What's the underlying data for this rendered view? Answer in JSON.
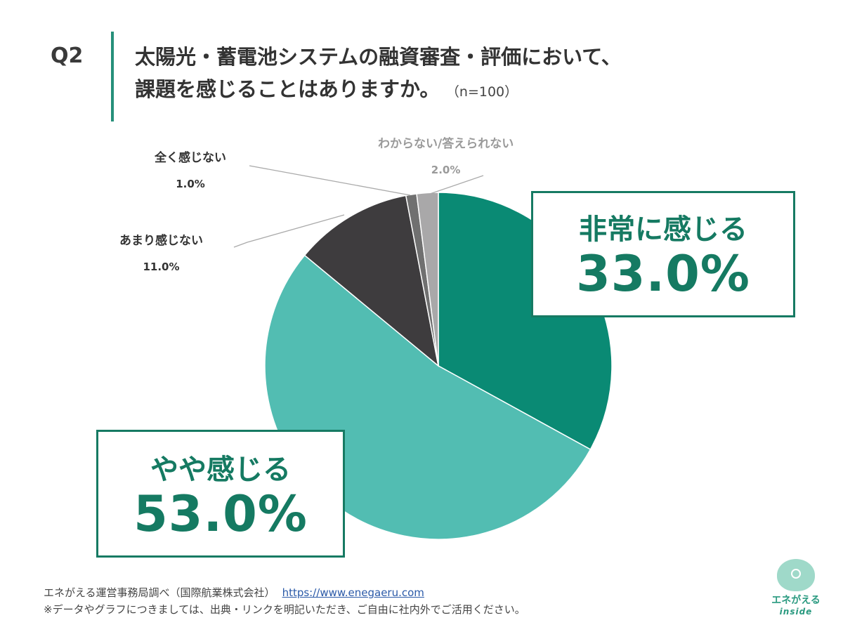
{
  "question": {
    "number": "Q2",
    "line1": "太陽光・蓄電池システムの融資審査・評価において、",
    "line2": "課題を感じることはありますか。",
    "sample": "（n=100）"
  },
  "chart_data": {
    "type": "pie",
    "title": "太陽光・蓄電池システムの融資審査・評価において、課題を感じることはありますか。",
    "unit": "%",
    "slices": [
      {
        "label": "非常に感じる",
        "value": 33.0,
        "display": "33.0%",
        "color": "#0a8a74"
      },
      {
        "label": "やや感じる",
        "value": 53.0,
        "display": "53.0%",
        "color": "#52bdb2"
      },
      {
        "label": "あまり感じない",
        "value": 11.0,
        "display": "11.0%",
        "color": "#3e3c3e"
      },
      {
        "label": "全く感じない",
        "value": 1.0,
        "display": "1.0%",
        "color": "#707070"
      },
      {
        "label": "わからない/答えられない",
        "value": 2.0,
        "display": "2.0%",
        "color": "#a9a8a9"
      }
    ]
  },
  "footer": {
    "source": "エネがえる運営事務局調べ（国際航業株式会社）",
    "url": "https://www.enegaeru.com",
    "note": "※データやグラフにつきましては、出典・リンクを明記いただき、ご自由に社内外でご活用ください。"
  },
  "logo": {
    "name": "エネがえる",
    "sub": "inside"
  }
}
